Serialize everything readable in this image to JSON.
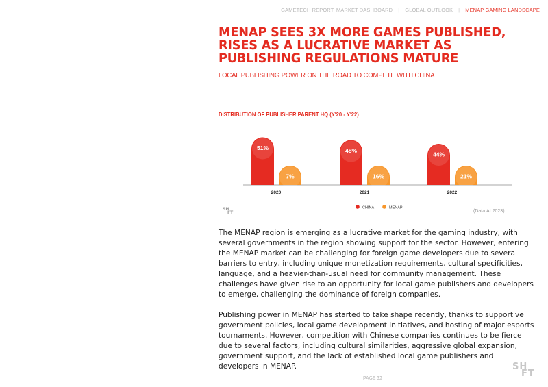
{
  "nav": {
    "items": [
      "GAMETECH REPORT:  MARKET DASHBOARD",
      "GLOBAL OUTLOOK",
      "MENAP GAMING LANDSCAPE"
    ],
    "separator": "|"
  },
  "title": "MENAP SEES 3X MORE GAMES PUBLISHED, RISES AS A LUCRATIVE MARKET AS PUBLISHING REGULATIONS MATURE",
  "subtitle": "LOCAL PUBLISHING POWER ON THE ROAD TO COMPETE WITH CHINA",
  "chart_title": "DISTRIBUTION OF PUBLISHER PARENT HQ  (Y'20 - Y'22)",
  "chart_data": {
    "type": "bar",
    "title": "DISTRIBUTION OF PUBLISHER PARENT HQ  (Y'20 - Y'22)",
    "categories": [
      "2020",
      "2021",
      "2022"
    ],
    "series": [
      {
        "name": "CHINA",
        "values": [
          51,
          48,
          44
        ],
        "labels": [
          "51%",
          "48%",
          "44%"
        ],
        "color": "#e52b22"
      },
      {
        "name": "MENAP",
        "values": [
          7,
          16,
          21
        ],
        "labels": [
          "7%",
          "16%",
          "21%"
        ],
        "color": "#f7962b"
      }
    ],
    "ylim": [
      0,
      55
    ],
    "legend": "bottom-center"
  },
  "logo_small": [
    "SH",
    "FT"
  ],
  "source": "(Data.AI 2023)",
  "paragraphs": [
    "The MENAP region is emerging as a lucrative market for the gaming industry, with several governments in the region showing support for the sector. However, entering the MENAP market can be challenging for foreign game developers due to several barriers to entry, including unique monetization requirements, cultural specificities, language, and a heavier-than-usual need for community management. These challenges have given rise to an opportunity for local game publishers and developers to emerge, challenging the dominance of foreign companies.",
    "Publishing power in MENAP has started to take shape recently,  thanks to supportive government policies, local game development initiatives, and hosting of major esports tournaments. However, competition with Chinese companies continues to be fierce due to several factors, including cultural similarities, aggressive global expansion, government support, and the lack of established local game publishers and developers in MENAP."
  ],
  "page_number": "PAGE 32",
  "logo_big": [
    "SH",
    "FT"
  ]
}
